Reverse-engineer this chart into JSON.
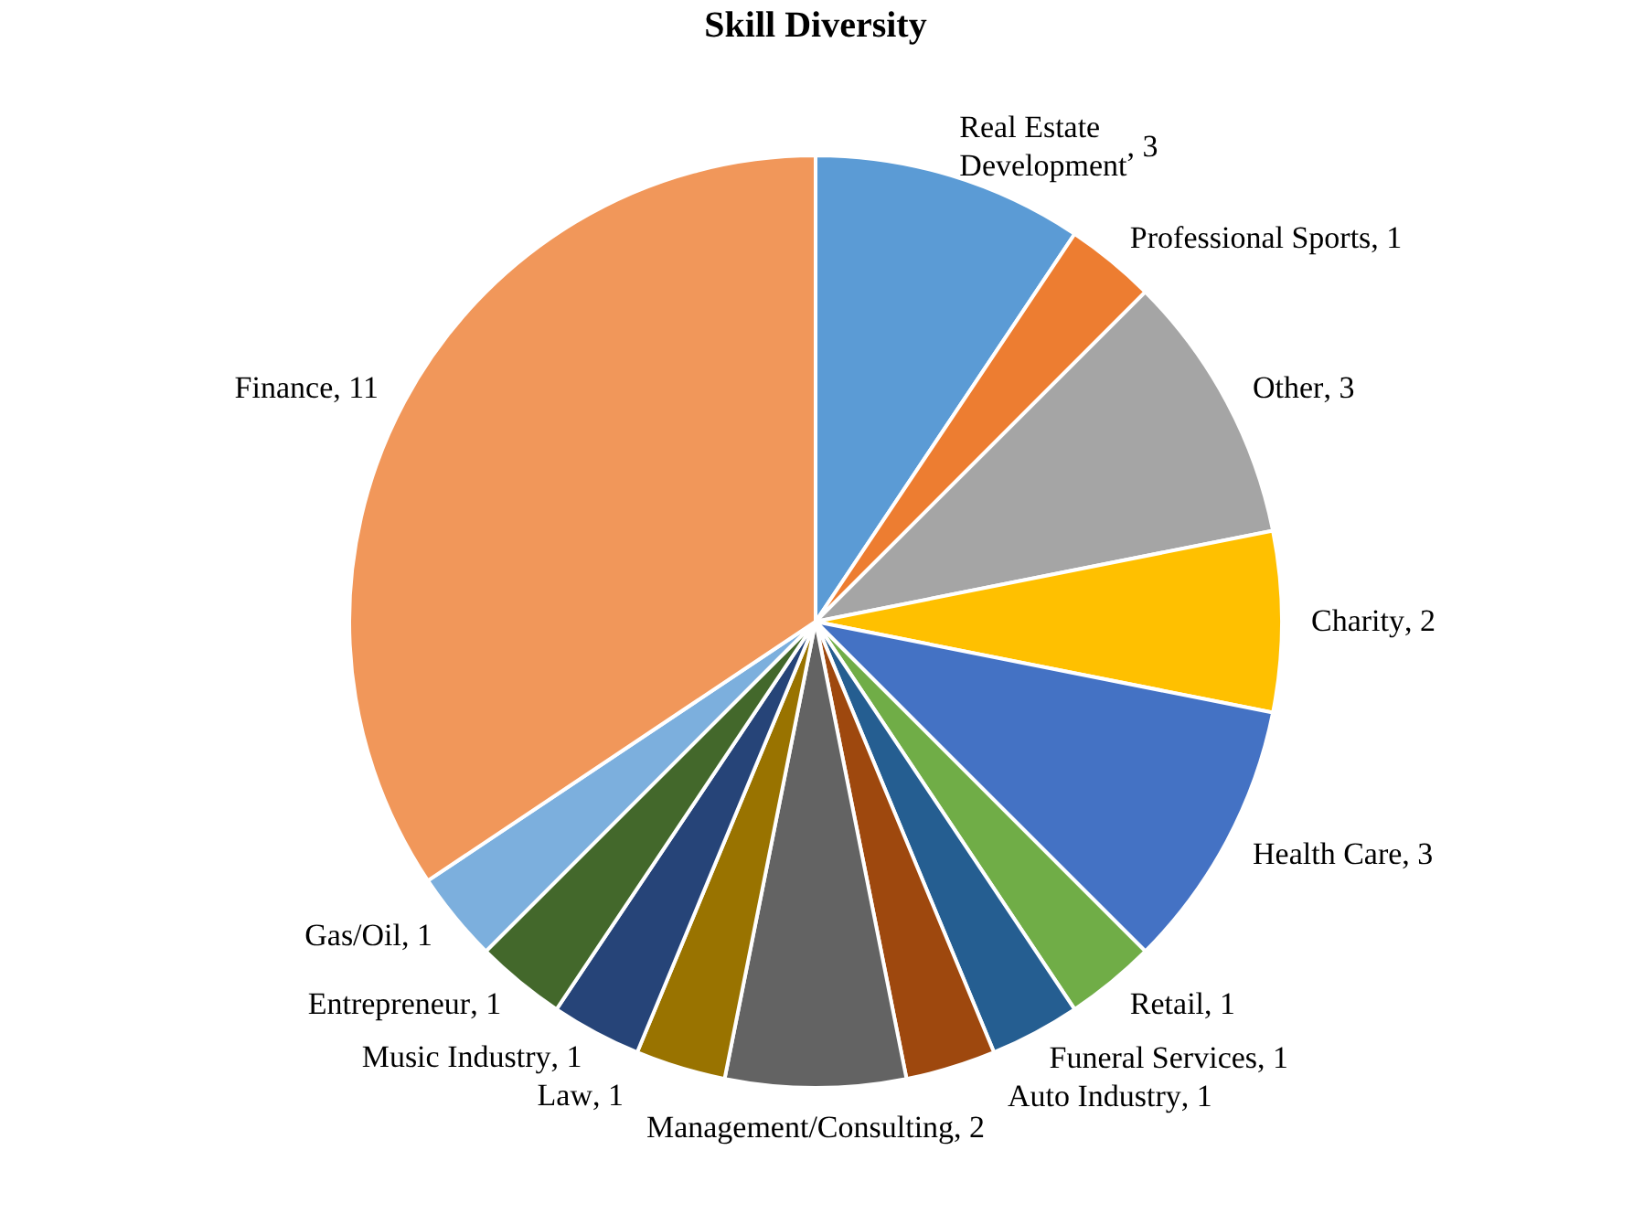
{
  "chart_data": {
    "type": "pie",
    "title": "Skill Diversity",
    "categories": [
      "Real Estate Development",
      "Professional Sports",
      "Other",
      "Charity",
      "Health Care",
      "Retail",
      "Funeral Services",
      "Auto Industry",
      "Management/Consulting",
      "Law",
      "Music Industry",
      "Entrepreneur",
      "Gas/Oil",
      "Finance"
    ],
    "values": [
      3,
      1,
      3,
      2,
      3,
      1,
      1,
      1,
      2,
      1,
      1,
      1,
      1,
      11
    ],
    "value_labels": [
      ", 3",
      ", 1",
      ", 3",
      ", 2",
      ", 3",
      ", 1",
      ", 1",
      ", 1",
      ", 2",
      ", 1",
      ", 1",
      ", 1",
      ", 1",
      ", 11"
    ],
    "colors": [
      "#5b9bd5",
      "#ed7d31",
      "#a5a5a5",
      "#ffc000",
      "#4472c4",
      "#70ad47",
      "#255e91",
      "#9e480e",
      "#636363",
      "#997300",
      "#264478",
      "#43682b",
      "#7cafdd",
      "#f1975a"
    ],
    "legend": false
  }
}
